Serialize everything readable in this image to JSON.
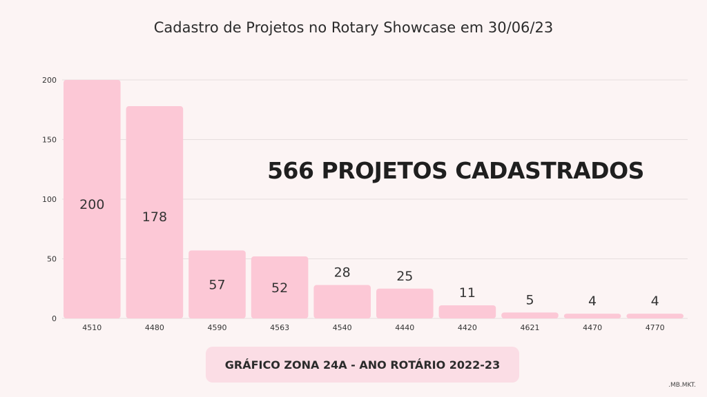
{
  "chart_data": {
    "type": "bar",
    "title": "Cadastro de Projetos no Rotary Showcase em 30/06/23",
    "categories": [
      "4510",
      "4480",
      "4590",
      "4563",
      "4540",
      "4440",
      "4420",
      "4621",
      "4470",
      "4770"
    ],
    "values": [
      200,
      178,
      57,
      52,
      28,
      25,
      11,
      5,
      4,
      4
    ],
    "data_labels": [
      "200",
      "178",
      "57",
      "52",
      "28",
      "25",
      "11",
      "5",
      "4",
      "4"
    ],
    "yticks": [
      0,
      50,
      100,
      150,
      200
    ],
    "ytick_labels": [
      "0",
      "50",
      "100",
      "150",
      "200"
    ],
    "ylim": [
      0,
      200
    ],
    "grid": true,
    "legend": "none",
    "bar_color": "#fcc8d6"
  },
  "annotation": "566 PROJETOS CADASTRADOS",
  "footer": "GRÁFICO ZONA 24A - ANO ROTÁRIO 2022-23",
  "signature": ".MB.MKT."
}
